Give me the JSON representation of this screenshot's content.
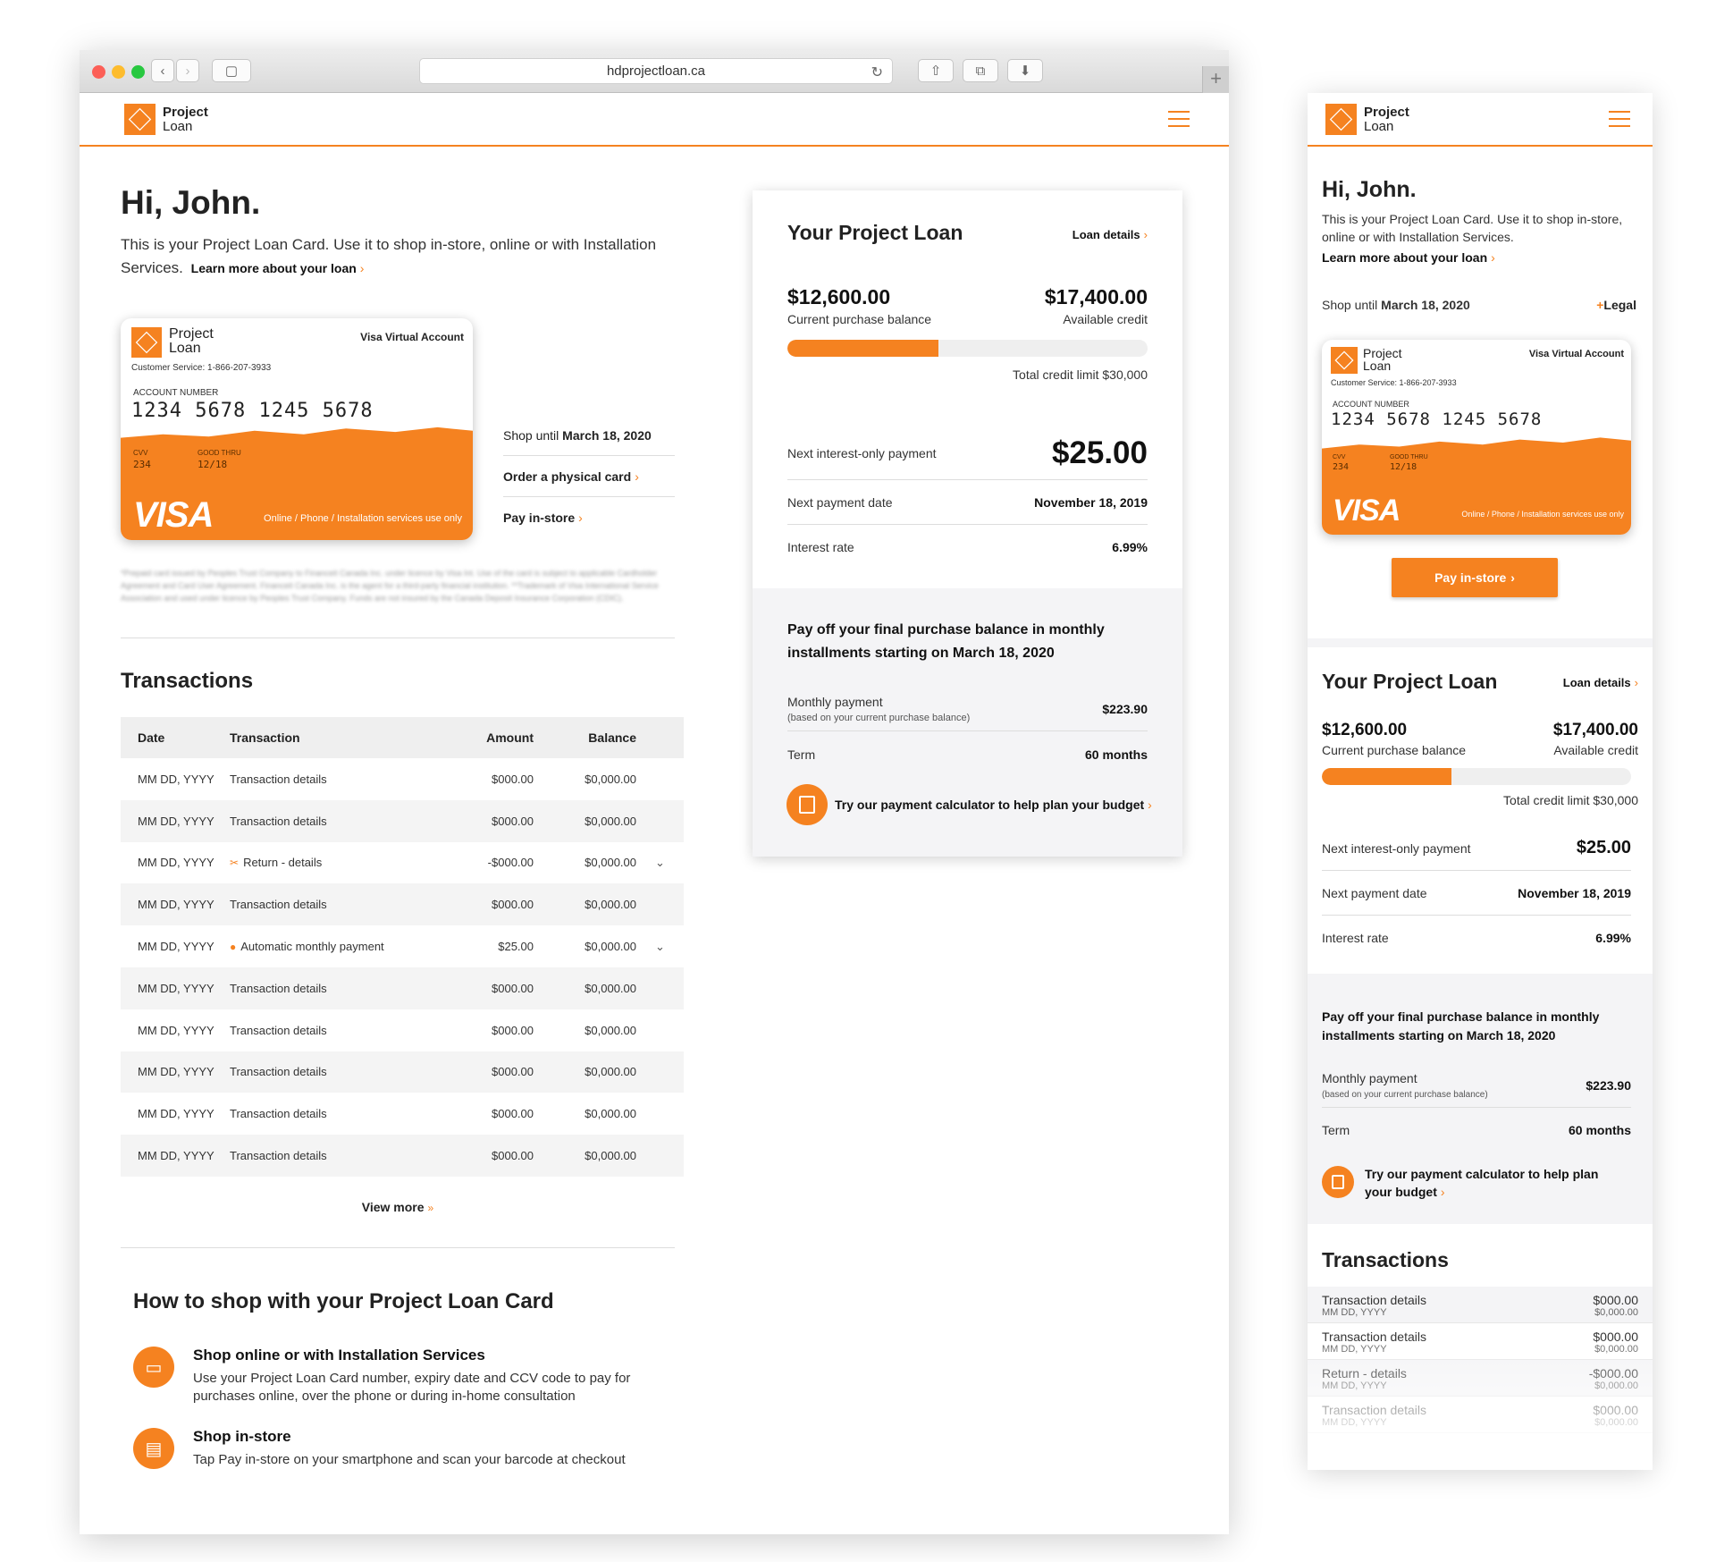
{
  "browser": {
    "url": "hdprojectloan.ca",
    "back": "‹",
    "forward": "›",
    "sidebar": "▢",
    "share": "⇧",
    "tabs": "⧉",
    "download": "⬇",
    "reload": "↻",
    "new_tab": "+"
  },
  "brand": {
    "line1": "Project",
    "line2": "Loan",
    "accent": "#f58220"
  },
  "greeting": {
    "title": "Hi, John.",
    "text": "This is your Project Loan Card. Use it to shop in-store, online or with Installation Services.",
    "link": "Learn more about your loan"
  },
  "card": {
    "type": "Visa Virtual Account",
    "service": "Customer Service: 1-866-207-3933",
    "account_label": "ACCOUNT NUMBER",
    "number": "1234 5678 1245 5678",
    "cvv_label": "CVV",
    "cvv": "234",
    "thru_label": "GOOD THRU",
    "thru": "12/18",
    "brand": "VISA",
    "usage": "Online / Phone / Installation services use only"
  },
  "card_actions": {
    "shop_until_label": "Shop until",
    "shop_until_date": "March 18, 2020",
    "order": "Order a physical card",
    "pay": "Pay in-store",
    "legal": "Legal"
  },
  "disclaimer": "*Prepaid card issued by Peoples Trust Company to Financeit Canada Inc. under licence by Visa Int. Use of the card is subject to applicable Cardholder Agreement and Card User Agreement. Financeit Canada Inc. is the agent for a third-party financial institution. **Trademark of Visa International Service Association and used under licence by Peoples Trust Company. Funds are not insured by the Canada Deposit Insurance Corporation (CDIC).",
  "transactions": {
    "title": "Transactions",
    "headers": [
      "Date",
      "Transaction",
      "Amount",
      "Balance"
    ],
    "rows": [
      {
        "date": "MM DD, YYYY",
        "desc": "Transaction details",
        "amount": "$000.00",
        "balance": "$0,000.00",
        "icon": "",
        "expand": ""
      },
      {
        "date": "MM DD, YYYY",
        "desc": "Transaction details",
        "amount": "$000.00",
        "balance": "$0,000.00",
        "icon": "",
        "expand": ""
      },
      {
        "date": "MM DD, YYYY",
        "desc": "Return - details",
        "amount": "-$000.00",
        "balance": "$0,000.00",
        "icon": "✂",
        "expand": "⌄"
      },
      {
        "date": "MM DD, YYYY",
        "desc": "Transaction details",
        "amount": "$000.00",
        "balance": "$0,000.00",
        "icon": "",
        "expand": ""
      },
      {
        "date": "MM DD, YYYY",
        "desc": "Automatic monthly payment",
        "amount": "$25.00",
        "balance": "$0,000.00",
        "icon": "●",
        "expand": "⌄"
      },
      {
        "date": "MM DD, YYYY",
        "desc": "Transaction details",
        "amount": "$000.00",
        "balance": "$0,000.00",
        "icon": "",
        "expand": ""
      },
      {
        "date": "MM DD, YYYY",
        "desc": "Transaction details",
        "amount": "$000.00",
        "balance": "$0,000.00",
        "icon": "",
        "expand": ""
      },
      {
        "date": "MM DD, YYYY",
        "desc": "Transaction details",
        "amount": "$000.00",
        "balance": "$0,000.00",
        "icon": "",
        "expand": ""
      },
      {
        "date": "MM DD, YYYY",
        "desc": "Transaction details",
        "amount": "$000.00",
        "balance": "$0,000.00",
        "icon": "",
        "expand": ""
      },
      {
        "date": "MM DD, YYYY",
        "desc": "Transaction details",
        "amount": "$000.00",
        "balance": "$0,000.00",
        "icon": "",
        "expand": ""
      }
    ],
    "view_more": "View more",
    "mobile_rows": [
      {
        "desc": "Transaction details",
        "date": "MM DD, YYYY",
        "amount": "$000.00",
        "balance": "$0,000.00"
      },
      {
        "desc": "Transaction details",
        "date": "MM DD, YYYY",
        "amount": "$000.00",
        "balance": "$0,000.00"
      },
      {
        "desc": "Return - details",
        "date": "MM DD, YYYY",
        "amount": "-$000.00",
        "balance": "$0,000.00"
      },
      {
        "desc": "Transaction details",
        "date": "MM DD, YYYY",
        "amount": "$000.00",
        "balance": "$0,000.00"
      }
    ]
  },
  "how_to": {
    "title": "How to shop with your Project Loan Card",
    "items": [
      {
        "title": "Shop online or with Installation Services",
        "desc": "Use your Project Loan Card number, expiry date and CCV code to pay for purchases online, over the phone or during in-home consultation",
        "icon": "laptop-icon"
      },
      {
        "title": "Shop in-store",
        "desc": "Tap Pay in-store on your smartphone and scan your barcode at checkout",
        "icon": "store-icon"
      }
    ]
  },
  "loan": {
    "title": "Your Project Loan",
    "details_link": "Loan details",
    "purchase_balance": "$12,600.00",
    "purchase_balance_label": "Current purchase balance",
    "available_credit": "$17,400.00",
    "available_credit_label": "Available credit",
    "usage_fraction": 0.42,
    "credit_limit": "Total credit limit $30,000",
    "next_payment_label": "Next interest-only payment",
    "next_payment": "$25.00",
    "next_date_label": "Next payment date",
    "next_date": "November 18, 2019",
    "rate_label": "Interest rate",
    "rate": "6.99%",
    "payoff_text": "Pay off your final purchase balance in monthly installments starting on March 18, 2020",
    "monthly_label": "Monthly payment",
    "monthly_note": "(based on your current purchase balance)",
    "monthly": "$223.90",
    "term_label": "Term",
    "term": "60 months",
    "calc_link": "Try our payment calculator to help plan your budget"
  }
}
